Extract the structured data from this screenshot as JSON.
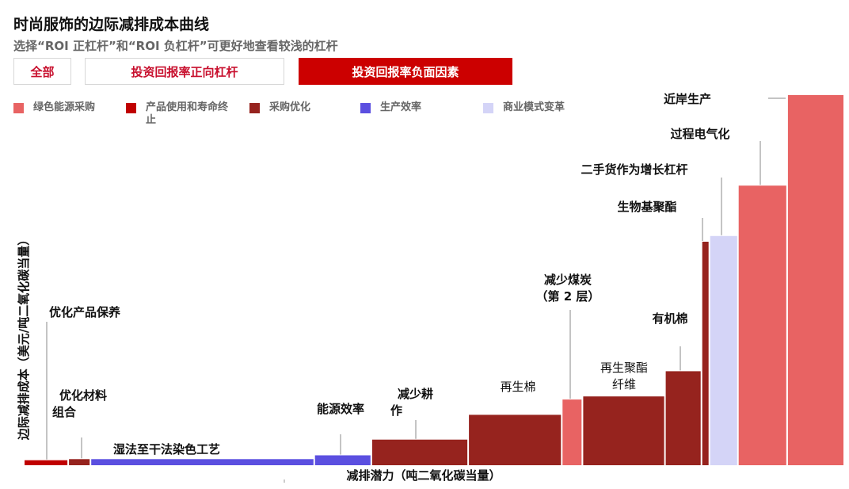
{
  "header": {
    "title": "时尚服饰的边际减排成本曲线",
    "subtitle": "选择“ROI 正杠杆”和“ROI 负杠杆”可更好地查看较浅的杠杆"
  },
  "filters": [
    {
      "label": "全部",
      "active": false
    },
    {
      "label": "投资回报率正向杠杆",
      "active": false
    },
    {
      "label": "投资回报率负面因素",
      "active": true
    }
  ],
  "legend": [
    {
      "label": "绿色能源采购",
      "color": "#e86363"
    },
    {
      "label": "产品使用和寿命终止",
      "color": "#c00000"
    },
    {
      "label": "采购优化",
      "color": "#96231e"
    },
    {
      "label": "生产效率",
      "color": "#5b4fe0"
    },
    {
      "label": "商业模式变革",
      "color": "#d4d4f7"
    }
  ],
  "chart_data": {
    "type": "bar",
    "title": "时尚服饰的边际减排成本曲线",
    "xlabel": "减排潜力（吨二氧化碳当量）",
    "ylabel": "边际减排成本（美元/吨二氧化碳当量）",
    "xlim": [
      0,
      1000
    ],
    "ylim": [
      0,
      100
    ],
    "bars": [
      {
        "label": "优化产品保养",
        "category": "产品使用和寿命终止",
        "width": 27,
        "value": 1.3
      },
      {
        "label": "优化材料组合",
        "category": "采购优化",
        "width": 13,
        "value": 1.6
      },
      {
        "label": "湿法至干法染色工艺",
        "category": "生产效率",
        "width": 140,
        "value": 1.6
      },
      {
        "label": "能源效率",
        "category": "生产效率",
        "width": 35,
        "value": 2.6
      },
      {
        "label": "减少耕作",
        "category": "采购优化",
        "width": 60,
        "value": 6.7
      },
      {
        "label": "再生棉",
        "category": "采购优化",
        "width": 58,
        "value": 13.2
      },
      {
        "label": "减少煤炭（第 2 层）",
        "category": "绿色能源采购",
        "width": 12,
        "value": 17.2
      },
      {
        "label": "再生聚酯纤维",
        "category": "采购优化",
        "width": 51,
        "value": 18.0
      },
      {
        "label": "有机棉",
        "category": "采购优化",
        "width": 22,
        "value": 24.6
      },
      {
        "label": "生物基聚酯",
        "category": "采购优化",
        "width": 4,
        "value": 58.5
      },
      {
        "label": "二手货作为增长杠杆",
        "category": "商业模式变革",
        "width": 17,
        "value": 60.0
      },
      {
        "label": "过程电气化",
        "category": "绿色能源采购",
        "width": 30,
        "value": 73.2
      },
      {
        "label": "近岸生产",
        "category": "绿色能源采购",
        "width": 35,
        "value": 96.9
      }
    ]
  }
}
